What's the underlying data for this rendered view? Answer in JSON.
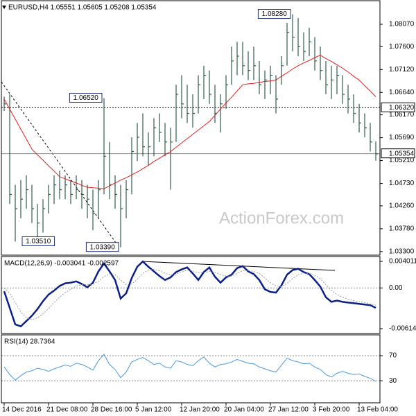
{
  "chart_data": [
    {
      "type": "ohlc",
      "title": "EURUSD,H4 1.05551 1.05605 1.05208 1.05354",
      "watermark": "ActionForex.com",
      "color": "#2f5a45",
      "high": [
        1.0655,
        1.066,
        1.047,
        1.048,
        1.049,
        1.047,
        1.043,
        1.044,
        1.047,
        1.049,
        1.05,
        1.049,
        1.048,
        1.049,
        1.048,
        1.047,
        1.046,
        1.048,
        1.0652,
        1.056,
        1.049,
        1.047,
        1.048,
        1.057,
        1.06,
        1.062,
        1.058,
        1.061,
        1.062,
        1.06,
        1.059,
        1.068,
        1.07,
        1.068,
        1.066,
        1.07,
        1.072,
        1.071,
        1.068,
        1.066,
        1.07,
        1.076,
        1.077,
        1.077,
        1.075,
        1.076,
        1.073,
        1.071,
        1.072,
        1.07,
        1.074,
        1.081,
        1.0828,
        1.082,
        1.079,
        1.08,
        1.078,
        1.076,
        1.073,
        1.072,
        1.072,
        1.07,
        1.068,
        1.066,
        1.064,
        1.062,
        1.06,
        1.0561
      ],
      "low": [
        1.0625,
        1.043,
        1.0351,
        1.04,
        1.042,
        1.039,
        1.0355,
        1.037,
        1.041,
        1.043,
        1.044,
        1.044,
        1.043,
        1.044,
        1.042,
        1.04,
        1.0375,
        1.04,
        1.045,
        1.044,
        1.042,
        1.0339,
        1.04,
        1.045,
        1.052,
        1.053,
        1.051,
        1.053,
        1.056,
        1.053,
        1.046,
        1.056,
        1.061,
        1.06,
        1.059,
        1.062,
        1.065,
        1.064,
        1.06,
        1.058,
        1.063,
        1.068,
        1.07,
        1.07,
        1.069,
        1.069,
        1.066,
        1.065,
        1.066,
        1.062,
        1.068,
        1.072,
        1.075,
        1.074,
        1.073,
        1.074,
        1.071,
        1.069,
        1.066,
        1.065,
        1.066,
        1.064,
        1.062,
        1.06,
        1.058,
        1.057,
        1.054,
        1.0521
      ],
      "close": [
        1.064,
        1.045,
        1.042,
        1.044,
        1.046,
        1.042,
        1.039,
        1.042,
        1.045,
        1.047,
        1.046,
        1.047,
        1.045,
        1.046,
        1.045,
        1.044,
        1.041,
        1.046,
        1.053,
        1.047,
        1.045,
        1.042,
        1.046,
        1.054,
        1.057,
        1.055,
        1.055,
        1.059,
        1.058,
        1.056,
        1.056,
        1.066,
        1.064,
        1.062,
        1.062,
        1.068,
        1.07,
        1.066,
        1.062,
        1.064,
        1.068,
        1.073,
        1.074,
        1.072,
        1.071,
        1.072,
        1.068,
        1.069,
        1.07,
        1.065,
        1.072,
        1.079,
        1.078,
        1.076,
        1.075,
        1.077,
        1.073,
        1.071,
        1.068,
        1.069,
        1.07,
        1.066,
        1.065,
        1.062,
        1.06,
        1.059,
        1.056,
        1.0535
      ],
      "ma": {
        "color": "#e01e1e",
        "values": [
          1.065,
          1.0629,
          1.0608,
          1.0587,
          1.0566,
          1.0545,
          1.0533,
          1.0522,
          1.051,
          1.0499,
          1.0487,
          1.0483,
          1.0478,
          1.0474,
          1.0469,
          1.0465,
          1.0464,
          1.0463,
          1.0462,
          1.0468,
          1.0474,
          1.048,
          1.0485,
          1.0491,
          1.0497,
          1.0504,
          1.0511,
          1.0519,
          1.0526,
          1.0533,
          1.054,
          1.0549,
          1.0558,
          1.0567,
          1.0576,
          1.0585,
          1.0594,
          1.0603,
          1.0616,
          1.0629,
          1.0642,
          1.0654,
          1.0667,
          1.068,
          1.0682,
          1.0683,
          1.0685,
          1.0687,
          1.0688,
          1.069,
          1.0698,
          1.0705,
          1.0713,
          1.072,
          1.0726,
          1.0731,
          1.0737,
          1.0742,
          1.0735,
          1.0729,
          1.0722,
          1.0715,
          1.0707,
          1.0698,
          1.069,
          1.0678,
          1.0667,
          1.0655
        ]
      },
      "ylim": [
        1.0324,
        1.0855
      ],
      "yticks": [
        {
          "value": 1.0807,
          "label": "1.08070"
        },
        {
          "value": 1.076,
          "label": "1.07600"
        },
        {
          "value": 1.0712,
          "label": "1.07120"
        },
        {
          "value": 1.0664,
          "label": "1.06640"
        },
        {
          "value": 1.0617,
          "label": "1.06170"
        },
        {
          "value": 1.0569,
          "label": "1.05690"
        },
        {
          "value": 1.0521,
          "label": "1.05210"
        },
        {
          "value": 1.0473,
          "label": "1.04730"
        },
        {
          "value": 1.0426,
          "label": "1.04260"
        },
        {
          "value": 1.0378,
          "label": "1.03780"
        },
        {
          "value": 1.033,
          "label": "1.03300"
        }
      ],
      "levels": [
        {
          "value": 1.0632,
          "label": "1.06320",
          "dashed": true
        },
        {
          "value": 1.05354,
          "label": "1.05354",
          "dashed": false
        }
      ],
      "annotations": [
        {
          "value": 1.0828,
          "label": "1.08280",
          "x": 52
        },
        {
          "value": 1.0652,
          "label": "1.06520",
          "x": 18
        },
        {
          "value": 1.0351,
          "label": "1.03510",
          "x": 2
        },
        {
          "value": 1.0339,
          "label": "1.03390",
          "x": 21
        }
      ]
    },
    {
      "type": "line",
      "title": "MACD(12,26,9) -0.003041 -0.002597",
      "series": [
        {
          "color": "#0b1f8a",
          "width": 2.5,
          "dashed": false,
          "values": [
            -0.0005,
            -0.003,
            -0.0055,
            -0.0058,
            -0.005,
            -0.0042,
            -0.0032,
            -0.002,
            -0.001,
            -0.0004,
            0.0003,
            0.0007,
            0.0008,
            0.001,
            0.0006,
            0.0001,
            0.0008,
            0.0025,
            0.0037,
            0.0025,
            0.0012,
            -0.0016,
            -0.0008,
            0.0015,
            0.0032,
            0.004,
            0.0032,
            0.0025,
            0.0018,
            0.0012,
            0.0016,
            0.0024,
            0.0028,
            0.0031,
            0.0022,
            0.0012,
            0.0024,
            0.0031,
            0.0017,
            0.0008,
            0.0016,
            0.002,
            0.003,
            0.0033,
            0.0025,
            0.0021,
            0.0012,
            -0.0002,
            -0.0006,
            -0.0007,
            0.0004,
            0.002,
            0.0027,
            0.0029,
            0.0024,
            0.0021,
            0.0012,
            0.0002,
            -0.0014,
            -0.0021,
            -0.0019,
            -0.0021,
            -0.0022,
            -0.0023,
            -0.0024,
            -0.0025,
            -0.0026,
            -0.003
          ]
        },
        {
          "color": "#9a9a9a",
          "width": 1,
          "dashed": true,
          "values": [
            0.0,
            -0.0008,
            -0.0022,
            -0.0036,
            -0.0045,
            -0.0048,
            -0.0045,
            -0.0039,
            -0.0031,
            -0.0022,
            -0.0014,
            -0.0007,
            -0.0002,
            0.0003,
            0.0005,
            0.0005,
            0.0006,
            0.001,
            0.0017,
            0.0021,
            0.002,
            0.0012,
            0.0005,
            0.0006,
            0.0013,
            0.0022,
            0.0027,
            0.0028,
            0.0026,
            0.0022,
            0.002,
            0.0021,
            0.0024,
            0.0027,
            0.0026,
            0.0023,
            0.0023,
            0.0025,
            0.0024,
            0.002,
            0.0018,
            0.0018,
            0.0022,
            0.0026,
            0.0026,
            0.0025,
            0.0022,
            0.0015,
            0.0008,
            0.0003,
            0.0002,
            0.0007,
            0.0014,
            0.002,
            0.0022,
            0.0022,
            0.0019,
            0.0014,
            0.0005,
            -0.0004,
            -0.001,
            -0.0014,
            -0.0017,
            -0.0019,
            -0.0021,
            -0.0022,
            -0.0024,
            -0.0026
          ]
        }
      ],
      "ylim": [
        -0.00677,
        0.00464
      ],
      "yticks": [
        0.004011,
        {
          "value": 0,
          "label": "0.00"
        },
        -0.006143
      ],
      "levels": [
        0
      ]
    },
    {
      "type": "line",
      "title": "RSI(14) 28.7364",
      "series": [
        {
          "color": "#4a98e0",
          "width": 1,
          "dashed": false,
          "values": [
            52,
            40,
            31,
            38,
            44,
            46,
            50,
            48,
            45,
            49,
            52,
            55,
            53,
            58,
            56,
            52,
            47,
            62,
            72,
            56,
            48,
            35,
            44,
            60,
            64,
            67,
            62,
            56,
            58,
            52,
            50,
            62,
            60,
            56,
            54,
            62,
            68,
            58,
            52,
            56,
            57,
            60,
            64,
            61,
            58,
            57,
            52,
            49,
            46,
            44,
            55,
            66,
            62,
            60,
            57,
            58,
            52,
            48,
            40,
            36,
            42,
            45,
            42,
            40,
            41,
            37,
            34,
            29
          ]
        }
      ],
      "ylim": [
        -4,
        102
      ],
      "yticks": [
        70,
        30
      ],
      "levels": [
        70,
        30
      ],
      "xticks": [
        {
          "value": 0,
          "label": "14 Dec 2016"
        },
        {
          "value": 8,
          "label": "21 Dec 08:00"
        },
        {
          "value": 16,
          "label": "28 Dec 16:00"
        },
        {
          "value": 24,
          "label": "5 Jan 12:00"
        },
        {
          "value": 32,
          "label": "12 Jan 20:00"
        },
        {
          "value": 40,
          "label": "20 Jan 04:00"
        },
        {
          "value": 48,
          "label": "27 Jan 12:00"
        },
        {
          "value": 56,
          "label": "3 Feb 20:00"
        },
        {
          "value": 64,
          "label": "13 Feb 04:00"
        }
      ]
    }
  ]
}
